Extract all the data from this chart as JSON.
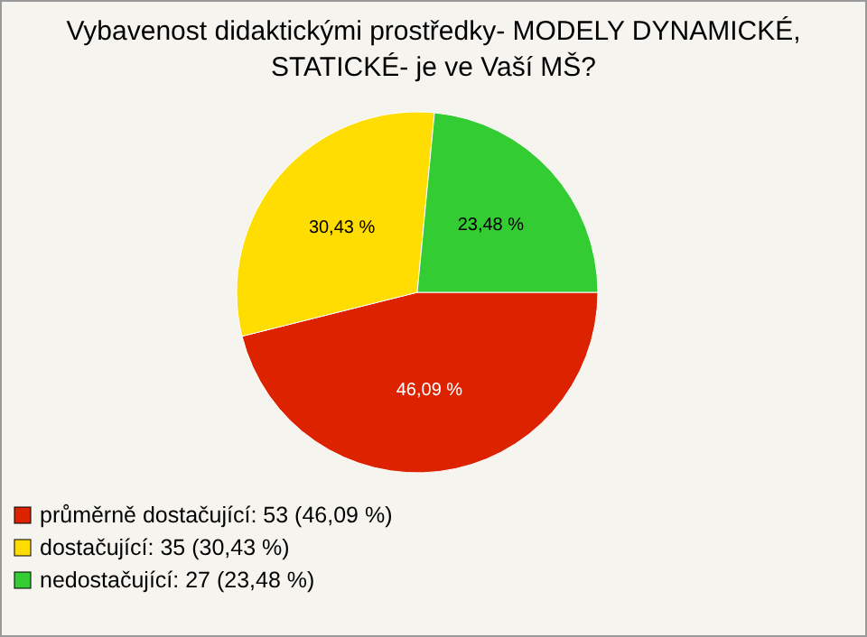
{
  "chart_data": {
    "type": "pie",
    "title": "Vybavenost didaktickými prostředky- MODELY DYNAMICKÉ, STATICKÉ- je ve Vaší MŠ?",
    "categories": [
      "průměrně dostačující: 53 (46,09 %)",
      "dostačující: 35 (30,43 %)",
      "nedostačující: 27 (23,48 %)"
    ],
    "values": [
      46.09,
      30.43,
      23.48
    ],
    "colors": [
      "#dd2200",
      "#ffdd00",
      "#33cc33"
    ],
    "value_labels": [
      "46,09 %",
      "30,43 %",
      "23,48 %"
    ],
    "legend": "bottom left"
  }
}
